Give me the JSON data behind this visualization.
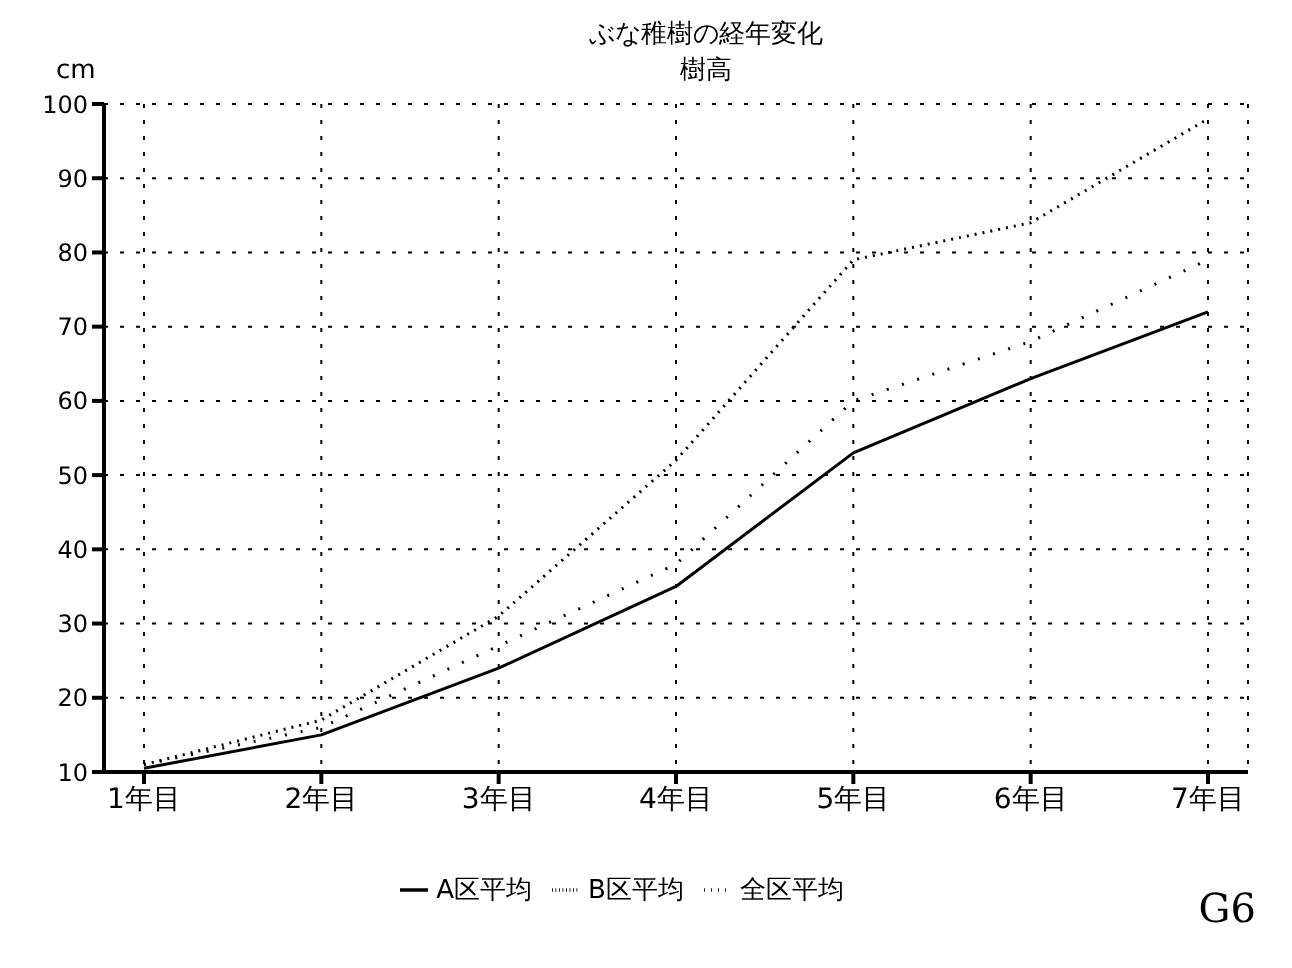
{
  "chart_data": {
    "type": "line",
    "title": "ぶな稚樹の経年変化",
    "subtitle": "樹高",
    "ylabel": "cm",
    "categories": [
      "1年目",
      "2年目",
      "3年目",
      "4年目",
      "5年目",
      "6年目",
      "7年目"
    ],
    "series": [
      {
        "name": "A区平均",
        "color": "#000000",
        "line_style": "solid",
        "values": [
          10.5,
          15,
          24,
          35,
          53,
          63,
          72
        ]
      },
      {
        "name": "B区平均",
        "color": "#000000",
        "line_style": "dotted",
        "values": [
          11,
          17,
          31,
          52,
          79,
          84,
          98
        ]
      },
      {
        "name": "全区平均",
        "color": "#000000",
        "line_style": "dashed",
        "values": [
          11,
          16,
          27,
          38,
          60,
          68,
          79
        ]
      }
    ],
    "ylim": [
      10,
      100
    ],
    "yticks": [
      10,
      20,
      30,
      40,
      50,
      60,
      70,
      80,
      90,
      100
    ],
    "grid": true,
    "legend": "bottom",
    "marker": "none",
    "annotations": [
      "G6"
    ]
  }
}
